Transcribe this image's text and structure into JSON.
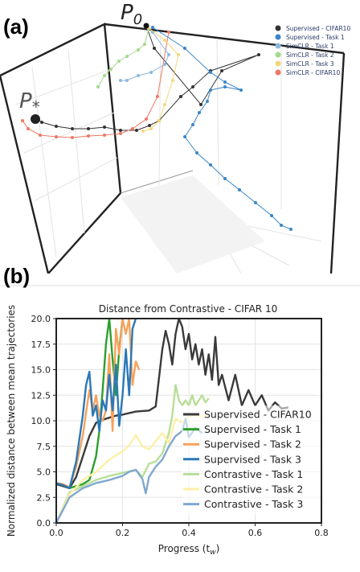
{
  "panel_a": {
    "label": "(a)",
    "start_label": "P",
    "start_subscript": "0",
    "end_label": "P",
    "end_subscript": "*",
    "legend": [
      {
        "name": "Supervised - CIFAR10",
        "color": "#333333"
      },
      {
        "name": "Supervised - Task 1",
        "color": "#3a86c8"
      },
      {
        "name": "SimCLR - Task 1",
        "color": "#8cb9e0"
      },
      {
        "name": "SimCLR - Task 2",
        "color": "#a6d98c"
      },
      {
        "name": "SimCLR - Task 3",
        "color": "#f5d77a"
      },
      {
        "name": "SimCLR - CIFAR10",
        "color": "#ee7864"
      }
    ]
  },
  "panel_b": {
    "label": "(b)"
  },
  "chart_data": {
    "type": "line",
    "title": "Distance from Contrastive - CIFAR 10",
    "xlabel": "Progress",
    "xlabel_symbol": "(t",
    "xlabel_subscript": "w",
    "xlabel_close": ")",
    "ylabel": "Normalized distance between mean trajectories",
    "xlim": [
      0.0,
      0.8
    ],
    "ylim": [
      0.0,
      20.0
    ],
    "xticks": [
      "0.0",
      "0.2",
      "0.4",
      "0.6",
      "0.8"
    ],
    "xtick_values": [
      0.0,
      0.2,
      0.4,
      0.6,
      0.8
    ],
    "yticks": [
      "0.0",
      "2.5",
      "5.0",
      "7.5",
      "10.0",
      "12.5",
      "15.0",
      "17.5",
      "20.0"
    ],
    "ytick_values": [
      0.0,
      2.5,
      5.0,
      7.5,
      10.0,
      12.5,
      15.0,
      17.5,
      20.0
    ],
    "grid": true,
    "legend_position": "lower-right",
    "series": [
      {
        "name": "Supervised - CIFAR10",
        "color": "#3a3a3a",
        "x": [
          0.0,
          0.02,
          0.04,
          0.06,
          0.08,
          0.1,
          0.12,
          0.14,
          0.16,
          0.18,
          0.2,
          0.24,
          0.28,
          0.3,
          0.32,
          0.33,
          0.34,
          0.35,
          0.36,
          0.37,
          0.38,
          0.39,
          0.4,
          0.41,
          0.42,
          0.43,
          0.44,
          0.45,
          0.46,
          0.47,
          0.48,
          0.49,
          0.5,
          0.52,
          0.54,
          0.56,
          0.58,
          0.6,
          0.62,
          0.64,
          0.66,
          0.68,
          0.7
        ],
        "y": [
          3.8,
          3.6,
          3.4,
          4.5,
          6.5,
          8.5,
          9.8,
          10.1,
          10.3,
          10.5,
          10.6,
          10.9,
          11.0,
          11.4,
          17.0,
          18.8,
          17.5,
          15.5,
          18.5,
          20.0,
          19.2,
          17.0,
          18.5,
          16.0,
          17.5,
          15.5,
          17.0,
          14.5,
          16.5,
          14.0,
          18.2,
          13.5,
          14.5,
          12.0,
          14.5,
          11.5,
          13.0,
          11.5,
          12.5,
          11.0,
          11.8,
          11.2,
          11.3
        ]
      },
      {
        "name": "Supervised - Task 1",
        "color": "#2ca02c",
        "x": [
          0.0,
          0.02,
          0.04,
          0.06,
          0.08,
          0.1,
          0.12,
          0.13,
          0.14,
          0.15,
          0.16,
          0.17,
          0.18,
          0.19,
          0.2
        ],
        "y": [
          3.9,
          3.7,
          3.4,
          3.6,
          3.8,
          4.2,
          6.5,
          9.0,
          13.0,
          17.5,
          20.0,
          16.0,
          12.5,
          17.0,
          20.0
        ]
      },
      {
        "name": "Supervised - Task 2",
        "color": "#f5a25c",
        "x": [
          0.0,
          0.02,
          0.04,
          0.06,
          0.08,
          0.09,
          0.1,
          0.11,
          0.12,
          0.13,
          0.14,
          0.15,
          0.16,
          0.17,
          0.18,
          0.19,
          0.2,
          0.21,
          0.22,
          0.23,
          0.24,
          0.25
        ],
        "y": [
          3.9,
          3.8,
          3.5,
          5.5,
          8.5,
          10.8,
          13.0,
          11.0,
          12.5,
          10.5,
          10.0,
          11.0,
          16.5,
          9.0,
          19.0,
          16.5,
          20.0,
          18.5,
          20.0,
          13.5,
          15.8,
          15.0
        ]
      },
      {
        "name": "Supervised - Task 3",
        "color": "#2b78b8",
        "x": [
          0.0,
          0.02,
          0.04,
          0.06,
          0.08,
          0.09,
          0.1,
          0.11,
          0.12,
          0.13,
          0.14,
          0.15,
          0.16,
          0.17,
          0.18,
          0.19,
          0.2,
          0.21,
          0.22,
          0.23,
          0.24
        ],
        "y": [
          3.9,
          3.7,
          3.4,
          6.0,
          10.5,
          13.5,
          14.8,
          10.5,
          11.5,
          9.0,
          12.0,
          11.0,
          14.5,
          11.0,
          15.5,
          9.5,
          12.5,
          17.0,
          12.5,
          19.0,
          20.0
        ]
      },
      {
        "name": "Contrastive - Task 1",
        "color": "#b8de98",
        "x": [
          0.0,
          0.04,
          0.08,
          0.12,
          0.16,
          0.2,
          0.24,
          0.26,
          0.28,
          0.3,
          0.32,
          0.34,
          0.35,
          0.36,
          0.37,
          0.38,
          0.39,
          0.4,
          0.41,
          0.42,
          0.43,
          0.44,
          0.45,
          0.46
        ],
        "y": [
          0.0,
          3.0,
          3.6,
          4.2,
          4.6,
          4.9,
          5.2,
          4.5,
          5.8,
          6.0,
          6.8,
          8.8,
          10.5,
          13.5,
          12.0,
          11.5,
          12.0,
          11.5,
          12.5,
          11.5,
          12.0,
          12.5,
          11.8,
          12.2
        ]
      },
      {
        "name": "Contrastive - Task 2",
        "color": "#fdf0a8",
        "x": [
          0.0,
          0.04,
          0.08,
          0.12,
          0.16,
          0.2,
          0.22,
          0.24,
          0.26,
          0.28,
          0.3,
          0.32,
          0.34,
          0.36,
          0.38,
          0.4,
          0.42,
          0.44,
          0.46
        ],
        "y": [
          0.0,
          2.8,
          4.2,
          5.0,
          6.2,
          7.0,
          7.6,
          8.6,
          7.5,
          7.2,
          8.0,
          8.8,
          7.8,
          10.2,
          9.8,
          10.4,
          10.6,
          10.4,
          10.6
        ]
      },
      {
        "name": "Contrastive - Task 3",
        "color": "#7fa8cf",
        "x": [
          0.0,
          0.04,
          0.08,
          0.12,
          0.16,
          0.2,
          0.22,
          0.24,
          0.26,
          0.27,
          0.28,
          0.3,
          0.32,
          0.34,
          0.36,
          0.38,
          0.39,
          0.4,
          0.42,
          0.44
        ],
        "y": [
          0.0,
          2.5,
          3.4,
          3.9,
          4.2,
          4.6,
          5.0,
          5.2,
          4.3,
          2.9,
          4.5,
          5.5,
          6.2,
          7.5,
          8.5,
          9.0,
          10.2,
          8.4,
          9.3,
          8.8
        ]
      }
    ]
  }
}
